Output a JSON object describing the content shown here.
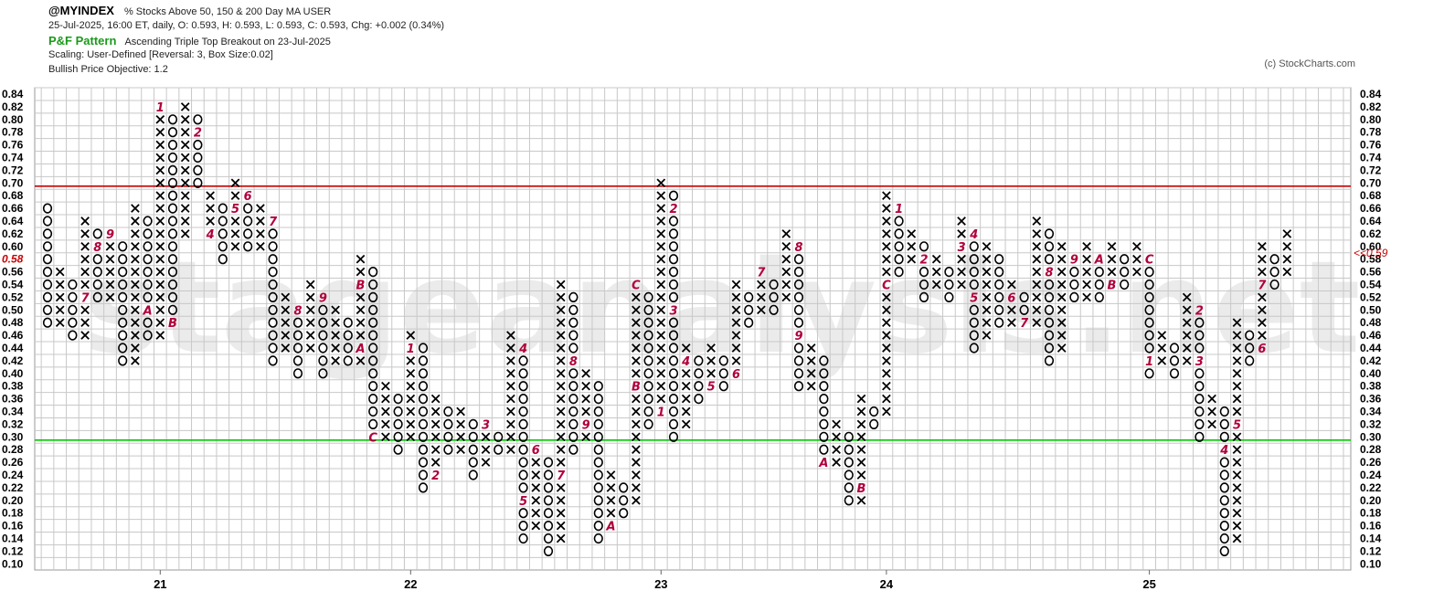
{
  "header": {
    "symbol": "@MYINDEX",
    "description": "% Stocks Above 50, 150 & 200 Day MA  USER",
    "ohlc_line": "25-Jul-2025, 16:00 ET, daily, O: 0.593, H: 0.593, L: 0.593, C: 0.593, Chg: +0.002 (0.34%)",
    "pattern_label": "P&F Pattern",
    "pattern_text": "Ascending Triple Top Breakout on 23-Jul-2025",
    "scaling": "Scaling: User-Defined [Reversal: 3, Box Size:0.02]",
    "objective": "Bullish Price Objective: 1.2"
  },
  "copyright": "(c) StockCharts.com",
  "watermark": "stageanalysis.net",
  "colors": {
    "x_mark": "#000000",
    "o_mark": "#000000",
    "month_mark": "#b0003a",
    "resistance": "#cc0000",
    "support": "#00cc00",
    "grid": "#c8c8c8",
    "last_price": "#cc0000"
  },
  "chart_data": {
    "type": "point-and-figure",
    "box_size": 0.02,
    "reversal": 3,
    "ylim": [
      0.1,
      0.84
    ],
    "y_ticks": [
      "0.84",
      "0.82",
      "0.80",
      "0.78",
      "0.76",
      "0.74",
      "0.72",
      "0.70",
      "0.68",
      "0.66",
      "0.64",
      "0.62",
      "0.60",
      "0.58",
      "0.56",
      "0.54",
      "0.52",
      "0.50",
      "0.48",
      "0.46",
      "0.44",
      "0.42",
      "0.40",
      "0.38",
      "0.36",
      "0.34",
      "0.32",
      "0.30",
      "0.28",
      "0.26",
      "0.24",
      "0.22",
      "0.20",
      "0.18",
      "0.16",
      "0.14",
      "0.12",
      "0.10"
    ],
    "highlight_tick": "0.58",
    "last_price_label": "<<0.59",
    "last_price": 0.59,
    "x_tick_labels": [
      {
        "label": "21",
        "column": 9
      },
      {
        "label": "22",
        "column": 29
      },
      {
        "label": "23",
        "column": 49
      },
      {
        "label": "24",
        "column": 67
      },
      {
        "label": "25",
        "column": 88
      }
    ],
    "horizontal_lines": [
      {
        "value": 0.695,
        "color": "resistance"
      },
      {
        "value": 0.295,
        "color": "support"
      }
    ],
    "columns": [
      {
        "type": "O",
        "high": 0.66,
        "low": 0.48
      },
      {
        "type": "X",
        "high": 0.56,
        "low": 0.48
      },
      {
        "type": "O",
        "high": 0.54,
        "low": 0.46
      },
      {
        "type": "X",
        "high": 0.64,
        "low": 0.46,
        "marks": [
          {
            "value": 0.52,
            "label": "7"
          }
        ]
      },
      {
        "type": "O",
        "high": 0.62,
        "low": 0.52,
        "marks": [
          {
            "value": 0.6,
            "label": "8"
          }
        ]
      },
      {
        "type": "X",
        "high": 0.62,
        "low": 0.52,
        "marks": [
          {
            "value": 0.62,
            "label": "9"
          }
        ]
      },
      {
        "type": "O",
        "high": 0.6,
        "low": 0.42
      },
      {
        "type": "X",
        "high": 0.66,
        "low": 0.42
      },
      {
        "type": "O",
        "high": 0.64,
        "low": 0.46,
        "marks": [
          {
            "value": 0.5,
            "label": "A"
          }
        ]
      },
      {
        "type": "X",
        "high": 0.82,
        "low": 0.46,
        "marks": [
          {
            "value": 0.82,
            "label": "1"
          }
        ]
      },
      {
        "type": "O",
        "high": 0.8,
        "low": 0.48,
        "marks": [
          {
            "value": 0.48,
            "label": "B"
          }
        ]
      },
      {
        "type": "X",
        "high": 0.82,
        "low": 0.62
      },
      {
        "type": "O",
        "high": 0.8,
        "low": 0.7,
        "marks": [
          {
            "value": 0.78,
            "label": "2"
          }
        ]
      },
      {
        "type": "X",
        "high": 0.68,
        "low": 0.62,
        "marks": [
          {
            "value": 0.62,
            "label": "4"
          }
        ]
      },
      {
        "type": "O",
        "high": 0.66,
        "low": 0.58,
        "marks": [
          {
            "value": 0.7,
            "label": "3"
          }
        ]
      },
      {
        "type": "X",
        "high": 0.7,
        "low": 0.6,
        "marks": [
          {
            "value": 0.66,
            "label": "5"
          }
        ]
      },
      {
        "type": "O",
        "high": 0.68,
        "low": 0.6,
        "marks": [
          {
            "value": 0.68,
            "label": "6"
          }
        ]
      },
      {
        "type": "X",
        "high": 0.66,
        "low": 0.6
      },
      {
        "type": "O",
        "high": 0.64,
        "low": 0.42,
        "marks": [
          {
            "value": 0.64,
            "label": "7"
          }
        ]
      },
      {
        "type": "X",
        "high": 0.52,
        "low": 0.44
      },
      {
        "type": "O",
        "high": 0.5,
        "low": 0.4,
        "marks": [
          {
            "value": 0.5,
            "label": "8"
          }
        ]
      },
      {
        "type": "X",
        "high": 0.54,
        "low": 0.44
      },
      {
        "type": "O",
        "high": 0.52,
        "low": 0.4,
        "marks": [
          {
            "value": 0.52,
            "label": "9"
          }
        ]
      },
      {
        "type": "X",
        "high": 0.5,
        "low": 0.42
      },
      {
        "type": "O",
        "high": 0.48,
        "low": 0.42
      },
      {
        "type": "X",
        "high": 0.58,
        "low": 0.42,
        "marks": [
          {
            "value": 0.44,
            "label": "A"
          },
          {
            "value": 0.54,
            "label": "B"
          }
        ]
      },
      {
        "type": "O",
        "high": 0.56,
        "low": 0.3,
        "marks": [
          {
            "value": 0.3,
            "label": "C"
          }
        ]
      },
      {
        "type": "X",
        "high": 0.38,
        "low": 0.3
      },
      {
        "type": "O",
        "high": 0.36,
        "low": 0.28
      },
      {
        "type": "X",
        "high": 0.46,
        "low": 0.3,
        "marks": [
          {
            "value": 0.44,
            "label": "1"
          }
        ]
      },
      {
        "type": "O",
        "high": 0.44,
        "low": 0.22
      },
      {
        "type": "X",
        "high": 0.36,
        "low": 0.24,
        "marks": [
          {
            "value": 0.24,
            "label": "2"
          }
        ]
      },
      {
        "type": "O",
        "high": 0.34,
        "low": 0.28
      },
      {
        "type": "X",
        "high": 0.34,
        "low": 0.28
      },
      {
        "type": "O",
        "high": 0.32,
        "low": 0.24
      },
      {
        "type": "X",
        "high": 0.32,
        "low": 0.26,
        "marks": [
          {
            "value": 0.32,
            "label": "3"
          }
        ]
      },
      {
        "type": "O",
        "high": 0.3,
        "low": 0.28
      },
      {
        "type": "X",
        "high": 0.46,
        "low": 0.28
      },
      {
        "type": "O",
        "high": 0.44,
        "low": 0.14,
        "marks": [
          {
            "value": 0.44,
            "label": "4"
          },
          {
            "value": 0.2,
            "label": "5"
          }
        ]
      },
      {
        "type": "X",
        "high": 0.28,
        "low": 0.16,
        "marks": [
          {
            "value": 0.28,
            "label": "6"
          }
        ]
      },
      {
        "type": "O",
        "high": 0.26,
        "low": 0.12
      },
      {
        "type": "X",
        "high": 0.54,
        "low": 0.14,
        "marks": [
          {
            "value": 0.24,
            "label": "7"
          }
        ]
      },
      {
        "type": "O",
        "high": 0.52,
        "low": 0.28,
        "marks": [
          {
            "value": 0.42,
            "label": "8"
          }
        ]
      },
      {
        "type": "X",
        "high": 0.4,
        "low": 0.3,
        "marks": [
          {
            "value": 0.32,
            "label": "9"
          }
        ]
      },
      {
        "type": "O",
        "high": 0.38,
        "low": 0.14
      },
      {
        "type": "X",
        "high": 0.24,
        "low": 0.16,
        "marks": [
          {
            "value": 0.16,
            "label": "A"
          }
        ]
      },
      {
        "type": "O",
        "high": 0.22,
        "low": 0.18
      },
      {
        "type": "X",
        "high": 0.54,
        "low": 0.2,
        "marks": [
          {
            "value": 0.38,
            "label": "B"
          },
          {
            "value": 0.54,
            "label": "C"
          }
        ]
      },
      {
        "type": "O",
        "high": 0.52,
        "low": 0.32
      },
      {
        "type": "X",
        "high": 0.7,
        "low": 0.34,
        "marks": [
          {
            "value": 0.34,
            "label": "1"
          }
        ]
      },
      {
        "type": "O",
        "high": 0.68,
        "low": 0.3,
        "marks": [
          {
            "value": 0.66,
            "label": "2"
          },
          {
            "value": 0.5,
            "label": "3"
          }
        ]
      },
      {
        "type": "X",
        "high": 0.44,
        "low": 0.32,
        "marks": [
          {
            "value": 0.42,
            "label": "4"
          }
        ]
      },
      {
        "type": "O",
        "high": 0.42,
        "low": 0.36
      },
      {
        "type": "X",
        "high": 0.44,
        "low": 0.38,
        "marks": [
          {
            "value": 0.38,
            "label": "5"
          }
        ]
      },
      {
        "type": "O",
        "high": 0.42,
        "low": 0.38
      },
      {
        "type": "X",
        "high": 0.54,
        "low": 0.4,
        "marks": [
          {
            "value": 0.4,
            "label": "6"
          }
        ]
      },
      {
        "type": "O",
        "high": 0.52,
        "low": 0.48
      },
      {
        "type": "X",
        "high": 0.56,
        "low": 0.5,
        "marks": [
          {
            "value": 0.56,
            "label": "7"
          }
        ]
      },
      {
        "type": "O",
        "high": 0.54,
        "low": 0.5
      },
      {
        "type": "X",
        "high": 0.62,
        "low": 0.52
      },
      {
        "type": "O",
        "high": 0.6,
        "low": 0.38,
        "marks": [
          {
            "value": 0.6,
            "label": "8"
          },
          {
            "value": 0.46,
            "label": "9"
          }
        ]
      },
      {
        "type": "X",
        "high": 0.44,
        "low": 0.38
      },
      {
        "type": "O",
        "high": 0.42,
        "low": 0.26,
        "marks": [
          {
            "value": 0.26,
            "label": "A"
          }
        ]
      },
      {
        "type": "X",
        "high": 0.32,
        "low": 0.26
      },
      {
        "type": "O",
        "high": 0.3,
        "low": 0.2
      },
      {
        "type": "X",
        "high": 0.36,
        "low": 0.2,
        "marks": [
          {
            "value": 0.22,
            "label": "B"
          }
        ]
      },
      {
        "type": "O",
        "high": 0.34,
        "low": 0.32
      },
      {
        "type": "X",
        "high": 0.68,
        "low": 0.34,
        "marks": [
          {
            "value": 0.54,
            "label": "C"
          }
        ]
      },
      {
        "type": "O",
        "high": 0.66,
        "low": 0.56,
        "marks": [
          {
            "value": 0.66,
            "label": "1"
          }
        ]
      },
      {
        "type": "X",
        "high": 0.62,
        "low": 0.58
      },
      {
        "type": "O",
        "high": 0.6,
        "low": 0.52,
        "marks": [
          {
            "value": 0.58,
            "label": "2"
          }
        ]
      },
      {
        "type": "X",
        "high": 0.58,
        "low": 0.54
      },
      {
        "type": "O",
        "high": 0.56,
        "low": 0.52
      },
      {
        "type": "X",
        "high": 0.64,
        "low": 0.54,
        "marks": [
          {
            "value": 0.6,
            "label": "3"
          }
        ]
      },
      {
        "type": "O",
        "high": 0.62,
        "low": 0.44,
        "marks": [
          {
            "value": 0.62,
            "label": "4"
          },
          {
            "value": 0.52,
            "label": "5"
          }
        ]
      },
      {
        "type": "X",
        "high": 0.6,
        "low": 0.46
      },
      {
        "type": "O",
        "high": 0.58,
        "low": 0.48
      },
      {
        "type": "X",
        "high": 0.54,
        "low": 0.48,
        "marks": [
          {
            "value": 0.52,
            "label": "6"
          }
        ]
      },
      {
        "type": "O",
        "high": 0.52,
        "low": 0.48,
        "marks": [
          {
            "value": 0.48,
            "label": "7"
          }
        ]
      },
      {
        "type": "X",
        "high": 0.64,
        "low": 0.48
      },
      {
        "type": "O",
        "high": 0.62,
        "low": 0.42,
        "marks": [
          {
            "value": 0.56,
            "label": "8"
          }
        ]
      },
      {
        "type": "X",
        "high": 0.6,
        "low": 0.44
      },
      {
        "type": "O",
        "high": 0.58,
        "low": 0.52,
        "marks": [
          {
            "value": 0.58,
            "label": "9"
          }
        ]
      },
      {
        "type": "X",
        "high": 0.6,
        "low": 0.52
      },
      {
        "type": "O",
        "high": 0.58,
        "low": 0.52,
        "marks": [
          {
            "value": 0.58,
            "label": "A"
          }
        ]
      },
      {
        "type": "X",
        "high": 0.6,
        "low": 0.54,
        "marks": [
          {
            "value": 0.54,
            "label": "B"
          }
        ]
      },
      {
        "type": "O",
        "high": 0.58,
        "low": 0.54
      },
      {
        "type": "X",
        "high": 0.6,
        "low": 0.56
      },
      {
        "type": "O",
        "high": 0.58,
        "low": 0.4,
        "marks": [
          {
            "value": 0.58,
            "label": "C"
          },
          {
            "value": 0.42,
            "label": "1"
          }
        ]
      },
      {
        "type": "X",
        "high": 0.46,
        "low": 0.42
      },
      {
        "type": "O",
        "high": 0.44,
        "low": 0.4
      },
      {
        "type": "X",
        "high": 0.52,
        "low": 0.42
      },
      {
        "type": "O",
        "high": 0.5,
        "low": 0.3,
        "marks": [
          {
            "value": 0.5,
            "label": "2"
          },
          {
            "value": 0.42,
            "label": "3"
          }
        ]
      },
      {
        "type": "X",
        "high": 0.36,
        "low": 0.32
      },
      {
        "type": "O",
        "high": 0.34,
        "low": 0.12,
        "marks": [
          {
            "value": 0.28,
            "label": "4"
          }
        ]
      },
      {
        "type": "X",
        "high": 0.48,
        "low": 0.14,
        "marks": [
          {
            "value": 0.32,
            "label": "5"
          }
        ]
      },
      {
        "type": "O",
        "high": 0.46,
        "low": 0.42
      },
      {
        "type": "X",
        "high": 0.6,
        "low": 0.44,
        "marks": [
          {
            "value": 0.44,
            "label": "6"
          },
          {
            "value": 0.54,
            "label": "7"
          }
        ]
      },
      {
        "type": "O",
        "high": 0.58,
        "low": 0.54
      },
      {
        "type": "X",
        "high": 0.62,
        "low": 0.56
      }
    ]
  }
}
